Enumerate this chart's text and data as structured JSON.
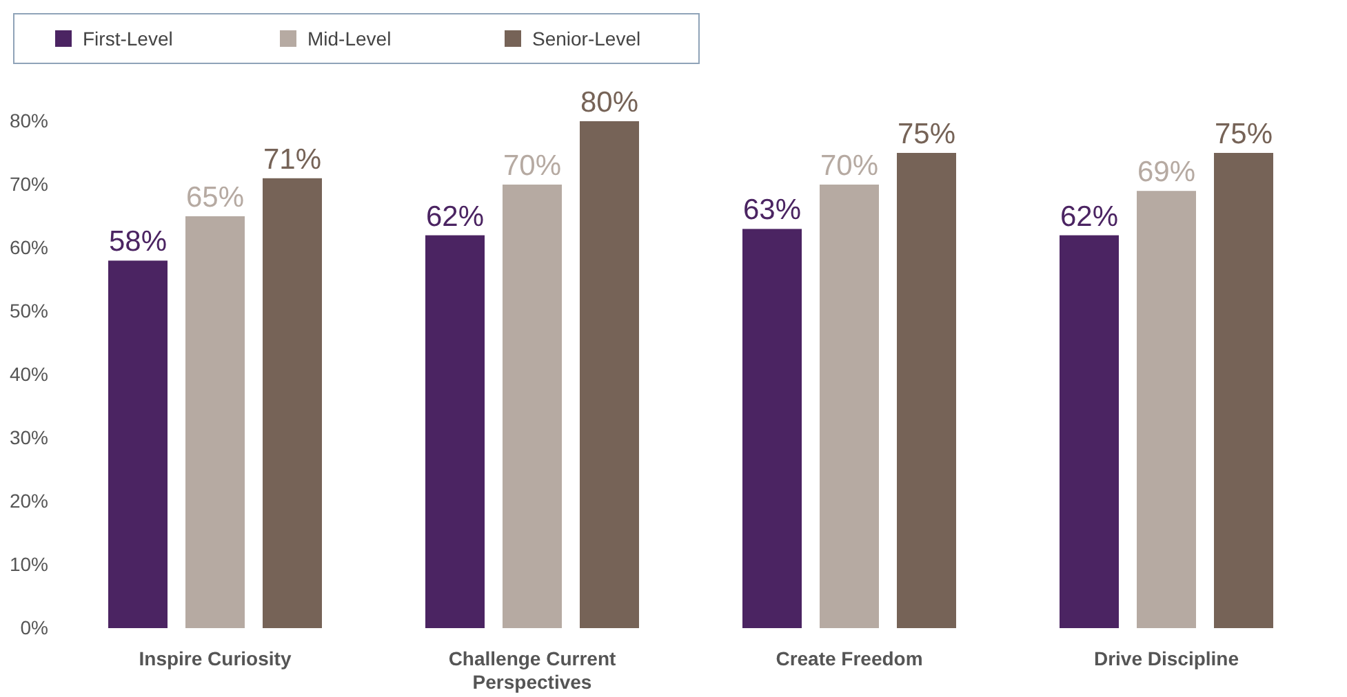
{
  "chart_data": {
    "type": "bar",
    "categories": [
      "Inspire Curiosity",
      "Challenge Current Perspectives",
      "Create Freedom",
      "Drive Discipline"
    ],
    "series": [
      {
        "name": "First-Level",
        "color": "#4b2462",
        "values": [
          58,
          62,
          63,
          62
        ],
        "value_labels": [
          "58%",
          "62%",
          "63%",
          "62%"
        ]
      },
      {
        "name": "Mid-Level",
        "color": "#b6aaa2",
        "values": [
          65,
          70,
          70,
          69
        ],
        "value_labels": [
          "65%",
          "70%",
          "70%",
          "69%"
        ]
      },
      {
        "name": "Senior-Level",
        "color": "#766357",
        "values": [
          71,
          80,
          75,
          75
        ],
        "value_labels": [
          "71%",
          "80%",
          "75%",
          "75%"
        ]
      }
    ],
    "ylim": [
      0,
      80
    ],
    "yticks": [
      {
        "value": 0,
        "label": "0%"
      },
      {
        "value": 10,
        "label": "10%"
      },
      {
        "value": 20,
        "label": "20%"
      },
      {
        "value": 30,
        "label": "30%"
      },
      {
        "value": 40,
        "label": "40%"
      },
      {
        "value": 50,
        "label": "50%"
      },
      {
        "value": 60,
        "label": "60%"
      },
      {
        "value": 70,
        "label": "70%"
      },
      {
        "value": 80,
        "label": "80%"
      }
    ],
    "legend": "top left"
  }
}
